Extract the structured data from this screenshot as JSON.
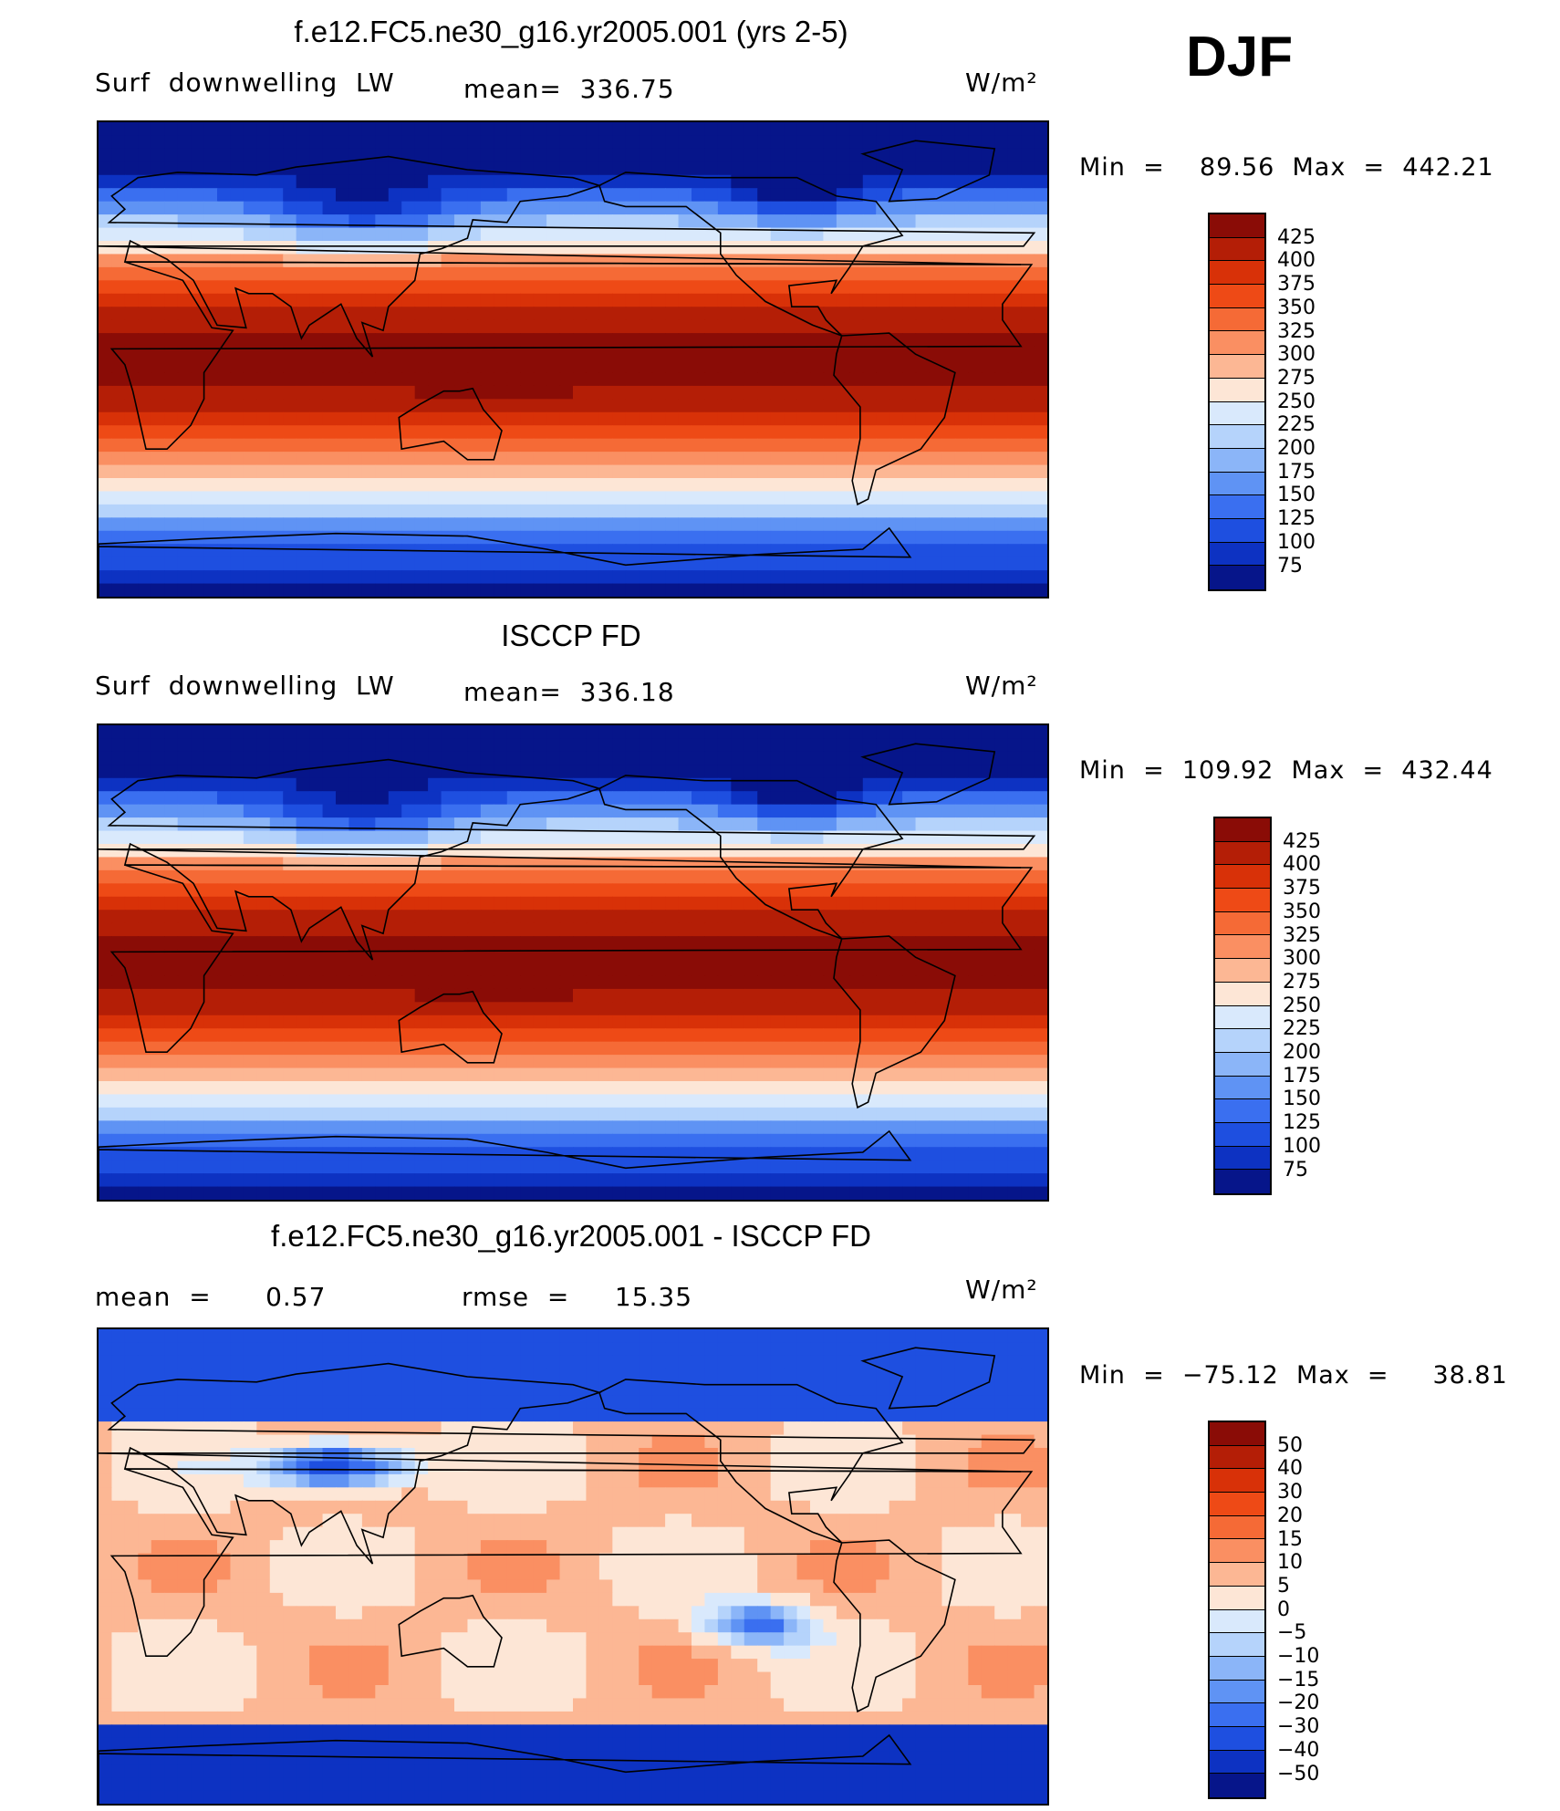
{
  "season": "DJF",
  "panels": [
    {
      "title": "f.e12.FC5.ne30_g16.yr2005.001 (yrs 2-5)",
      "left_label": "Surf  downwelling  LW",
      "center_label": "mean=  336.75",
      "units": "W/m²",
      "stats": "Min  =    89.56  Max  =  442.21",
      "mode": "field",
      "colorbar": {
        "labels": [
          "425",
          "400",
          "375",
          "350",
          "325",
          "300",
          "275",
          "250",
          "225",
          "200",
          "175",
          "150",
          "125",
          "100",
          "75"
        ],
        "colors": [
          "#8a0c06",
          "#b41e06",
          "#d83108",
          "#ee4a16",
          "#f56a36",
          "#fa8f62",
          "#fcb794",
          "#fde6d6",
          "#d9e9fc",
          "#b5d3fb",
          "#8bb5f8",
          "#5f93f4",
          "#3a6ff0",
          "#1e4fe0",
          "#0d32c2",
          "#06158a"
        ]
      }
    },
    {
      "title": "ISCCP FD",
      "left_label": "Surf  downwelling  LW",
      "center_label": "mean=  336.18",
      "units": "W/m²",
      "stats": "Min  =  109.92  Max  =  432.44",
      "mode": "field",
      "colorbar": {
        "labels": [
          "425",
          "400",
          "375",
          "350",
          "325",
          "300",
          "275",
          "250",
          "225",
          "200",
          "175",
          "150",
          "125",
          "100",
          "75"
        ],
        "colors": [
          "#8a0c06",
          "#b41e06",
          "#d83108",
          "#ee4a16",
          "#f56a36",
          "#fa8f62",
          "#fcb794",
          "#fde6d6",
          "#d9e9fc",
          "#b5d3fb",
          "#8bb5f8",
          "#5f93f4",
          "#3a6ff0",
          "#1e4fe0",
          "#0d32c2",
          "#06158a"
        ]
      }
    },
    {
      "title": "f.e12.FC5.ne30_g16.yr2005.001 - ISCCP FD",
      "left_label": "mean  =      0.57",
      "center_label": "rmse  =     15.35",
      "units": "W/m²",
      "stats": "Min  =  −75.12  Max  =     38.81",
      "mode": "diff",
      "colorbar": {
        "labels": [
          "50",
          "40",
          "30",
          "20",
          "15",
          "10",
          "5",
          "0",
          "−5",
          "−10",
          "−15",
          "−20",
          "−30",
          "−40",
          "−50"
        ],
        "colors": [
          "#8a0c06",
          "#b41e06",
          "#d83108",
          "#ee4a16",
          "#f56a36",
          "#fa8f62",
          "#fcb794",
          "#fde6d6",
          "#d9e9fc",
          "#b5d3fb",
          "#8bb5f8",
          "#5f93f4",
          "#3a6ff0",
          "#1e4fe0",
          "#0d32c2",
          "#06158a"
        ]
      }
    }
  ]
}
